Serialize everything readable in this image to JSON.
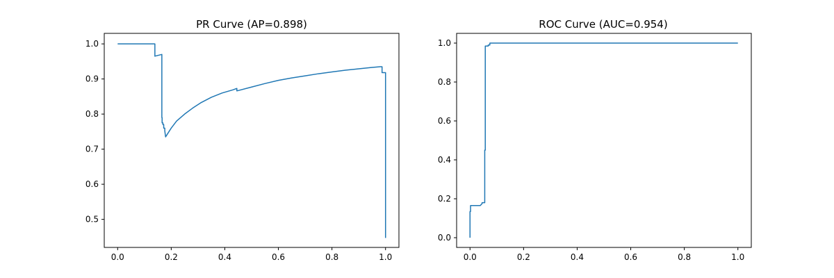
{
  "colors": {
    "series": "#1f77b4",
    "background": "#ffffff",
    "axes": "#000000"
  },
  "chart_data": [
    {
      "type": "line",
      "title": "PR Curve (AP=0.898)",
      "xlabel": "",
      "ylabel": "",
      "xlim": [
        -0.05,
        1.05
      ],
      "ylim": [
        0.42,
        1.03
      ],
      "xticks": [
        0.0,
        0.2,
        0.4,
        0.6,
        0.8,
        1.0
      ],
      "xtick_labels": [
        "0.0",
        "0.2",
        "0.4",
        "0.6",
        "0.8",
        "1.0"
      ],
      "yticks": [
        0.5,
        0.6,
        0.7,
        0.8,
        0.9,
        1.0
      ],
      "ytick_labels": [
        "0.5",
        "0.6",
        "0.7",
        "0.8",
        "0.9",
        "1.0"
      ],
      "grid": false,
      "series": [
        {
          "x": [
            0.0,
            0.139,
            0.139,
            0.165,
            0.165,
            0.166,
            0.166,
            0.169,
            0.169,
            0.172,
            0.172,
            0.176,
            0.176,
            0.179,
            0.2,
            0.22,
            0.25,
            0.28,
            0.31,
            0.35,
            0.39,
            0.43,
            0.445,
            0.445,
            0.5,
            0.55,
            0.6,
            0.65,
            0.7,
            0.75,
            0.8,
            0.85,
            0.9,
            0.95,
            0.98,
            0.987,
            0.987,
            1.0,
            1.0
          ],
          "y": [
            1.0,
            1.0,
            0.965,
            0.97,
            0.79,
            0.79,
            0.775,
            0.775,
            0.77,
            0.77,
            0.76,
            0.76,
            0.752,
            0.735,
            0.76,
            0.78,
            0.8,
            0.817,
            0.832,
            0.848,
            0.86,
            0.869,
            0.873,
            0.866,
            0.877,
            0.887,
            0.896,
            0.903,
            0.909,
            0.915,
            0.92,
            0.925,
            0.929,
            0.933,
            0.935,
            0.935,
            0.918,
            0.918,
            0.447
          ]
        }
      ]
    },
    {
      "type": "line",
      "title": "ROC Curve (AUC=0.954)",
      "xlabel": "",
      "ylabel": "",
      "xlim": [
        -0.05,
        1.05
      ],
      "ylim": [
        -0.05,
        1.05
      ],
      "xticks": [
        0.0,
        0.2,
        0.4,
        0.6,
        0.8,
        1.0
      ],
      "xtick_labels": [
        "0.0",
        "0.2",
        "0.4",
        "0.6",
        "0.8",
        "1.0"
      ],
      "yticks": [
        0.0,
        0.2,
        0.4,
        0.6,
        0.8,
        1.0
      ],
      "ytick_labels": [
        "0.0",
        "0.2",
        "0.4",
        "0.6",
        "0.8",
        "1.0"
      ],
      "grid": false,
      "series": [
        {
          "x": [
            0.0,
            0.0,
            0.002,
            0.002,
            0.005,
            0.005,
            0.038,
            0.045,
            0.045,
            0.055,
            0.055,
            0.057,
            0.057,
            0.068,
            0.068,
            0.074,
            0.074,
            1.0
          ],
          "y": [
            0.0,
            0.135,
            0.135,
            0.165,
            0.165,
            0.165,
            0.165,
            0.175,
            0.18,
            0.18,
            0.45,
            0.45,
            0.985,
            0.985,
            0.99,
            0.99,
            1.0,
            1.0
          ]
        }
      ]
    }
  ]
}
